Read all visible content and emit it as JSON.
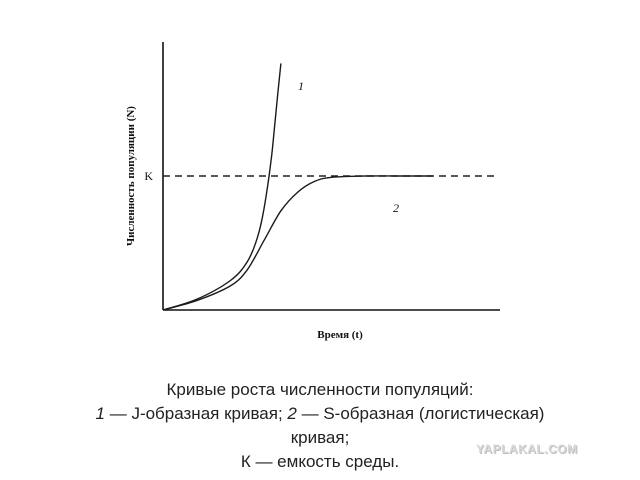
{
  "chart_data": {
    "type": "line",
    "title": "",
    "xlabel": "Время (t)",
    "ylabel": "Численность популяции (N)",
    "x_ticks": [],
    "y_ticks": [
      "K"
    ],
    "xlim": [
      0,
      10
    ],
    "ylim": [
      0,
      10
    ],
    "grid": false,
    "legend": "none",
    "capacity": {
      "label": "K",
      "value": 5,
      "style": "dashed"
    },
    "series": [
      {
        "name": "1",
        "x": [
          0,
          1.0,
          2.0,
          2.5,
          2.8,
          3.0,
          3.2,
          3.3,
          3.4,
          3.5
        ],
        "y": [
          0,
          0.4,
          1.1,
          1.8,
          2.7,
          3.8,
          5.5,
          6.7,
          8.0,
          9.2
        ]
      },
      {
        "name": "2",
        "x": [
          0,
          1.0,
          2.0,
          2.5,
          3.0,
          3.5,
          4.0,
          4.5,
          5.0,
          6.0,
          7.0,
          8.0
        ],
        "y": [
          0,
          0.35,
          0.9,
          1.5,
          2.6,
          3.7,
          4.4,
          4.8,
          4.95,
          5.0,
          5.0,
          5.0
        ]
      }
    ]
  },
  "caption": {
    "line1": "Кривые роста численности популяций:",
    "line2_num1": "1",
    "line2_text1": " — J-образная кривая; ",
    "line2_num2": "2",
    "line2_text2": " — S-образная (логистическая)",
    "line3": "кривая;",
    "line4": "К — емкость среды."
  },
  "watermark": "YAPLAKAL.COM",
  "colors": {
    "lines": "#1a1a1a",
    "text": "#222222",
    "watermark": "#d9d9d9"
  }
}
